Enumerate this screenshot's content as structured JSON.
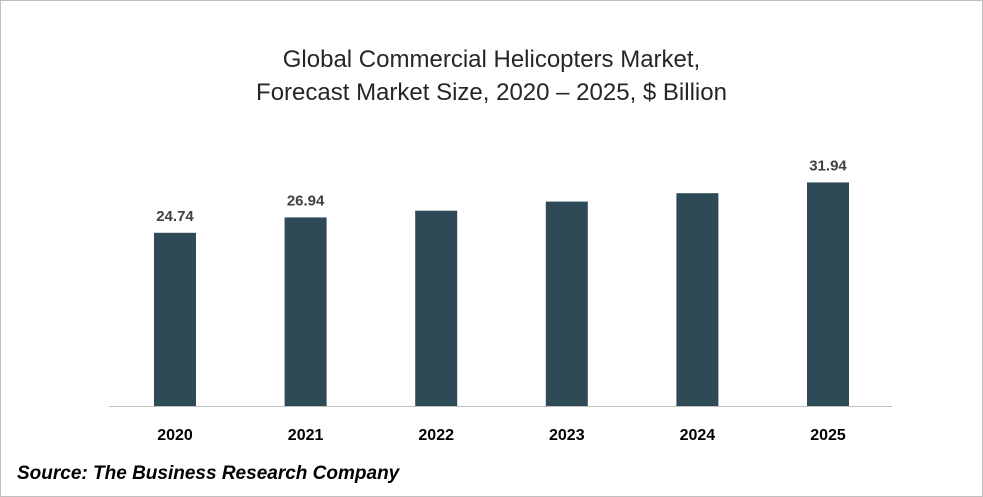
{
  "title_line1": "Global Commercial Helicopters Market,",
  "title_line2": "Forecast Market Size, 2020 – 2025, $ Billion",
  "source": "Source: The Business Research Company",
  "colors": {
    "bar": "#2e4a57",
    "axis": "#bfbfbf",
    "label": "#404040"
  },
  "chart_data": {
    "type": "bar",
    "title": "Global Commercial Helicopters Market, Forecast Market Size, 2020 – 2025, $ Billion",
    "categories": [
      "2020",
      "2021",
      "2022",
      "2023",
      "2024",
      "2025"
    ],
    "values": [
      24.74,
      26.94,
      27.9,
      29.2,
      30.4,
      31.94
    ],
    "data_labels": [
      "24.74",
      "26.94",
      "",
      "",
      "",
      "31.94"
    ],
    "xlabel": "",
    "ylabel": "",
    "ylim": [
      0,
      40
    ],
    "grid": false,
    "legend": "none"
  }
}
